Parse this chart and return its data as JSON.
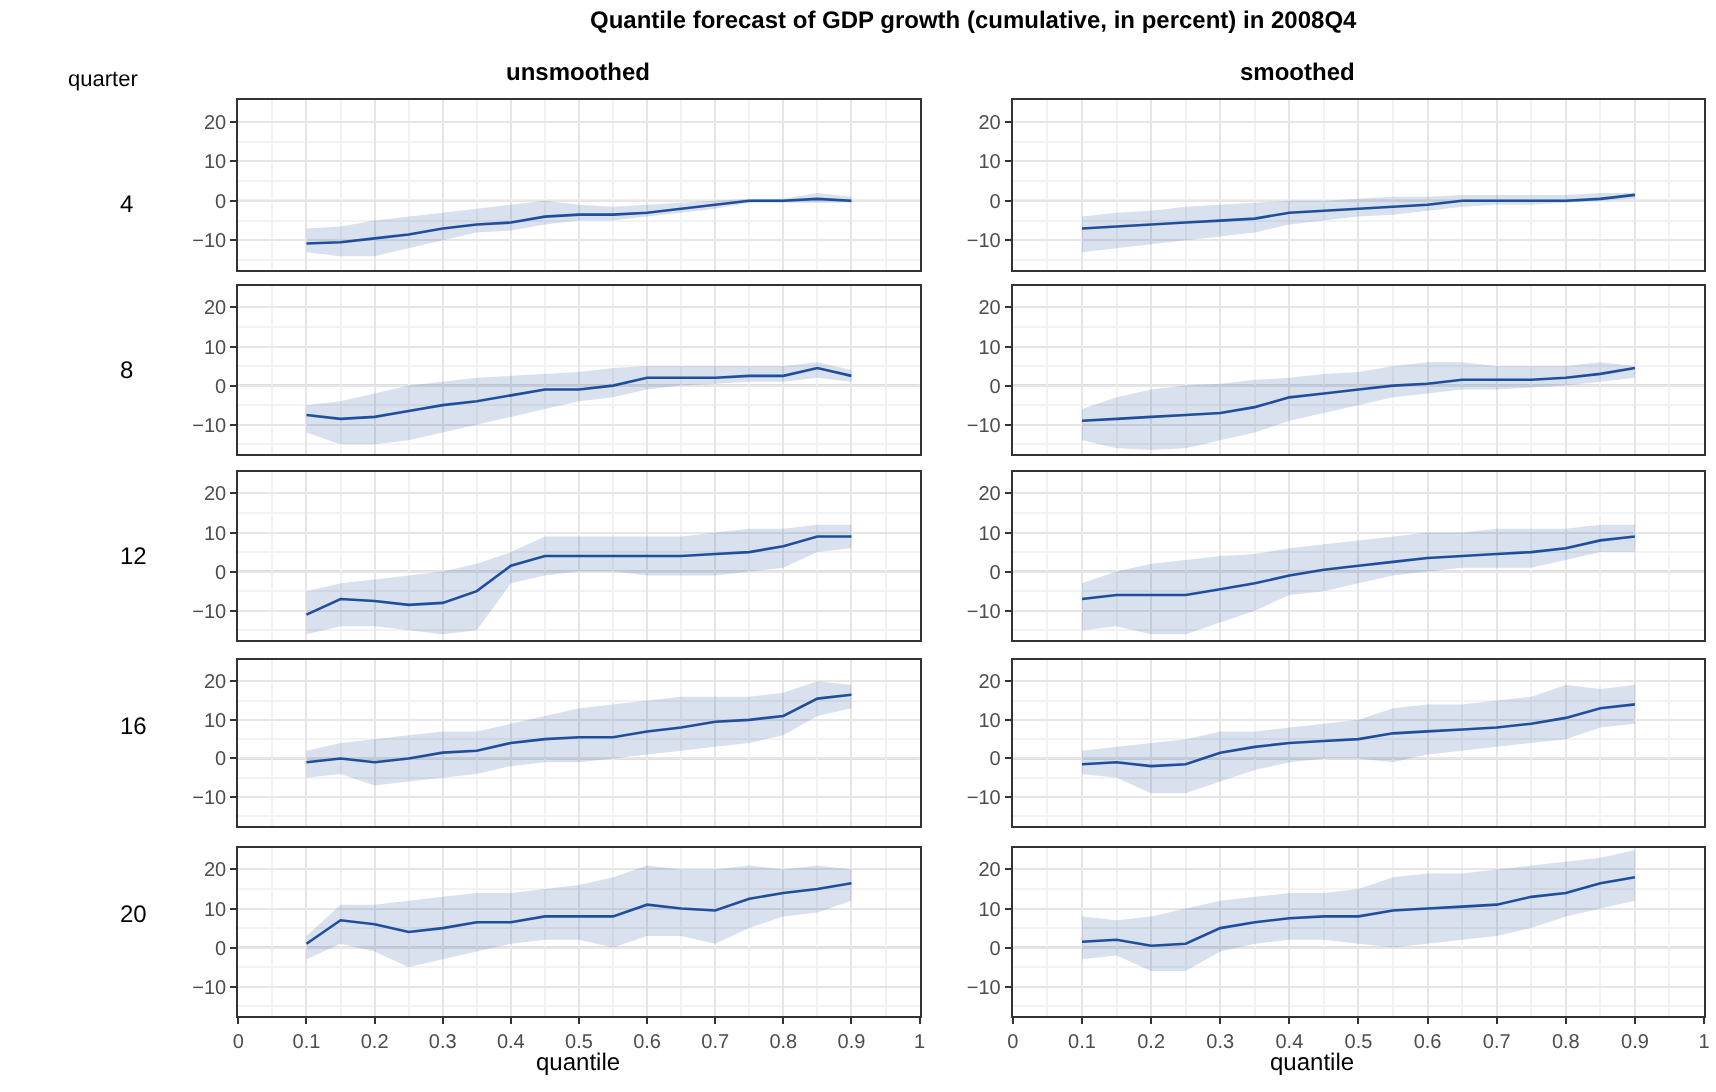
{
  "chart_data": [
    {
      "type": "line",
      "title": "Quantile forecast of GDP growth (cumulative, in percent) in 2008Q4",
      "subtitle": "unsmoothed",
      "ylabel": "4",
      "annotations": [
        "quarter"
      ],
      "x": [
        0.1,
        0.15,
        0.2,
        0.25,
        0.3,
        0.35,
        0.4,
        0.45,
        0.5,
        0.55,
        0.6,
        0.65,
        0.7,
        0.75,
        0.8,
        0.85,
        0.9
      ],
      "series": [
        {
          "color": "#1f4e9c",
          "values": [
            -10.8,
            -10.5,
            -9.5,
            -8.5,
            -7,
            -6,
            -5.5,
            -4,
            -3.5,
            -3.5,
            -3,
            -2,
            -1,
            0,
            0,
            0.5,
            0
          ],
          "lower": [
            -13,
            -14,
            -14,
            -12,
            -10,
            -8,
            -7.5,
            -6,
            -5,
            -5,
            -4,
            -3,
            -2,
            -0.5,
            -0.5,
            -0.5,
            -0.5
          ],
          "upper": [
            -7,
            -6.5,
            -5,
            -4,
            -3,
            -2,
            -1,
            0,
            -1,
            -1.5,
            -1,
            -0.5,
            0,
            0.5,
            0.5,
            2,
            1
          ]
        }
      ],
      "xlim": [
        0,
        1
      ],
      "xticks": [
        0,
        0.1,
        0.2,
        0.3,
        0.4,
        0.5,
        0.6,
        0.7,
        0.8,
        0.9,
        1
      ],
      "ylim": [
        -17.5,
        25.5
      ],
      "yticks": [
        -10,
        0,
        10,
        20
      ],
      "grid": true,
      "tick_labels": "y",
      "ref_lines": [
        {
          "axis": "y",
          "value": 0,
          "color": "#bdbdbd"
        }
      ]
    },
    {
      "type": "line",
      "subtitle": "smoothed",
      "x": [
        0.1,
        0.15,
        0.2,
        0.25,
        0.3,
        0.35,
        0.4,
        0.45,
        0.5,
        0.55,
        0.6,
        0.65,
        0.7,
        0.75,
        0.8,
        0.85,
        0.9
      ],
      "series": [
        {
          "color": "#1f4e9c",
          "values": [
            -7,
            -6.5,
            -6,
            -5.5,
            -5,
            -4.5,
            -3,
            -2.5,
            -2,
            -1.5,
            -1,
            0,
            0,
            0,
            0,
            0.5,
            1.5
          ],
          "lower": [
            -13,
            -12,
            -11,
            -10,
            -9,
            -8,
            -6,
            -5,
            -4,
            -3.5,
            -2.5,
            -1.5,
            -1,
            -1,
            -0.5,
            0,
            0.5
          ],
          "upper": [
            -4,
            -3,
            -2.5,
            -1.5,
            -1,
            -0.5,
            0,
            0,
            0.5,
            1,
            1,
            1.5,
            1.5,
            1.5,
            1.5,
            2,
            2
          ]
        }
      ],
      "xlim": [
        0,
        1
      ],
      "xticks": [
        0,
        0.1,
        0.2,
        0.3,
        0.4,
        0.5,
        0.6,
        0.7,
        0.8,
        0.9,
        1
      ],
      "ylim": [
        -17.5,
        25.5
      ],
      "yticks": [
        -10,
        0,
        10,
        20
      ],
      "grid": true,
      "tick_labels": "y",
      "ref_lines": [
        {
          "axis": "y",
          "value": 0,
          "color": "#bdbdbd"
        }
      ]
    },
    {
      "type": "line",
      "ylabel": "8",
      "x": [
        0.1,
        0.15,
        0.2,
        0.25,
        0.3,
        0.35,
        0.4,
        0.45,
        0.5,
        0.55,
        0.6,
        0.65,
        0.7,
        0.75,
        0.8,
        0.85,
        0.9
      ],
      "series": [
        {
          "color": "#1f4e9c",
          "values": [
            -7.5,
            -8.5,
            -8,
            -6.5,
            -5,
            -4,
            -2.5,
            -1,
            -1,
            0,
            2,
            2,
            2,
            2.5,
            2.5,
            4.5,
            2.5
          ],
          "lower": [
            -12,
            -15,
            -15,
            -14,
            -12,
            -10,
            -8,
            -6,
            -4,
            -3,
            -1,
            0,
            0.5,
            1,
            1,
            2,
            1
          ],
          "upper": [
            -5,
            -4,
            -2,
            0,
            1,
            2,
            2.5,
            3,
            3.5,
            4.5,
            5,
            5,
            5,
            5,
            5,
            6,
            4
          ]
        }
      ],
      "xlim": [
        0,
        1
      ],
      "xticks": [
        0,
        0.1,
        0.2,
        0.3,
        0.4,
        0.5,
        0.6,
        0.7,
        0.8,
        0.9,
        1
      ],
      "ylim": [
        -17.5,
        25.5
      ],
      "yticks": [
        -10,
        0,
        10,
        20
      ],
      "grid": true,
      "tick_labels": "y",
      "ref_lines": [
        {
          "axis": "y",
          "value": 0,
          "color": "#bdbdbd"
        }
      ]
    },
    {
      "type": "line",
      "x": [
        0.1,
        0.15,
        0.2,
        0.25,
        0.3,
        0.35,
        0.4,
        0.45,
        0.5,
        0.55,
        0.6,
        0.65,
        0.7,
        0.75,
        0.8,
        0.85,
        0.9
      ],
      "series": [
        {
          "color": "#1f4e9c",
          "values": [
            -9,
            -8.5,
            -8,
            -7.5,
            -7,
            -5.5,
            -3,
            -2,
            -1,
            0,
            0.5,
            1.5,
            1.5,
            1.5,
            2,
            3,
            4.5
          ],
          "lower": [
            -14,
            -16,
            -16.5,
            -16,
            -14,
            -12,
            -9,
            -7,
            -5,
            -3,
            -2,
            -1,
            -1,
            -0.5,
            0,
            1,
            2
          ],
          "upper": [
            -6,
            -3,
            -1,
            0,
            0.5,
            1.5,
            2,
            3,
            3.5,
            5,
            6,
            6,
            5,
            5,
            5,
            6,
            5
          ]
        }
      ],
      "xlim": [
        0,
        1
      ],
      "xticks": [
        0,
        0.1,
        0.2,
        0.3,
        0.4,
        0.5,
        0.6,
        0.7,
        0.8,
        0.9,
        1
      ],
      "ylim": [
        -17.5,
        25.5
      ],
      "yticks": [
        -10,
        0,
        10,
        20
      ],
      "grid": true,
      "tick_labels": "y",
      "ref_lines": [
        {
          "axis": "y",
          "value": 0,
          "color": "#bdbdbd"
        }
      ]
    },
    {
      "type": "line",
      "ylabel": "12",
      "x": [
        0.1,
        0.15,
        0.2,
        0.25,
        0.3,
        0.35,
        0.4,
        0.45,
        0.5,
        0.55,
        0.6,
        0.65,
        0.7,
        0.75,
        0.8,
        0.85,
        0.9
      ],
      "series": [
        {
          "color": "#1f4e9c",
          "values": [
            -11,
            -7,
            -7.5,
            -8.5,
            -8,
            -5,
            1.5,
            4,
            4,
            4,
            4,
            4,
            4.5,
            5,
            6.5,
            9,
            9
          ],
          "lower": [
            -16,
            -14,
            -14,
            -15,
            -16,
            -15,
            -3,
            -1,
            0,
            0,
            -1,
            -1,
            -1,
            0,
            1,
            5,
            6
          ],
          "upper": [
            -5,
            -3,
            -2,
            -1,
            0,
            2,
            5,
            9,
            9,
            9,
            9,
            9,
            10,
            11,
            11,
            12,
            12
          ]
        }
      ],
      "xlim": [
        0,
        1
      ],
      "xticks": [
        0,
        0.1,
        0.2,
        0.3,
        0.4,
        0.5,
        0.6,
        0.7,
        0.8,
        0.9,
        1
      ],
      "ylim": [
        -17.5,
        25.5
      ],
      "yticks": [
        -10,
        0,
        10,
        20
      ],
      "grid": true,
      "tick_labels": "y",
      "ref_lines": [
        {
          "axis": "y",
          "value": 0,
          "color": "#bdbdbd"
        }
      ]
    },
    {
      "type": "line",
      "x": [
        0.1,
        0.15,
        0.2,
        0.25,
        0.3,
        0.35,
        0.4,
        0.45,
        0.5,
        0.55,
        0.6,
        0.65,
        0.7,
        0.75,
        0.8,
        0.85,
        0.9
      ],
      "series": [
        {
          "color": "#1f4e9c",
          "values": [
            -7,
            -6,
            -6,
            -6,
            -4.5,
            -3,
            -1,
            0.5,
            1.5,
            2.5,
            3.5,
            4,
            4.5,
            5,
            6,
            8,
            9
          ],
          "lower": [
            -15,
            -14,
            -16,
            -16,
            -13,
            -10,
            -6,
            -5,
            -3,
            -1,
            0,
            1,
            1,
            1,
            3,
            5,
            5
          ],
          "upper": [
            -3,
            0,
            2,
            3,
            4,
            4.5,
            6,
            7,
            8,
            9,
            10,
            10,
            11,
            11,
            11,
            12,
            12
          ]
        }
      ],
      "xlim": [
        0,
        1
      ],
      "xticks": [
        0,
        0.1,
        0.2,
        0.3,
        0.4,
        0.5,
        0.6,
        0.7,
        0.8,
        0.9,
        1
      ],
      "ylim": [
        -17.5,
        25.5
      ],
      "yticks": [
        -10,
        0,
        10,
        20
      ],
      "grid": true,
      "tick_labels": "y",
      "ref_lines": [
        {
          "axis": "y",
          "value": 0,
          "color": "#bdbdbd"
        }
      ]
    },
    {
      "type": "line",
      "ylabel": "16",
      "x": [
        0.1,
        0.15,
        0.2,
        0.25,
        0.3,
        0.35,
        0.4,
        0.45,
        0.5,
        0.55,
        0.6,
        0.65,
        0.7,
        0.75,
        0.8,
        0.85,
        0.9
      ],
      "series": [
        {
          "color": "#1f4e9c",
          "values": [
            -1,
            0,
            -1,
            0,
            1.5,
            2,
            4,
            5,
            5.5,
            5.5,
            7,
            8,
            9.5,
            10,
            11,
            15.5,
            16.5
          ],
          "lower": [
            -5,
            -4,
            -7,
            -6,
            -5,
            -4,
            -2,
            -1,
            -1,
            0,
            1,
            2,
            3,
            4,
            6,
            11,
            13
          ],
          "upper": [
            2,
            4,
            5,
            6,
            7,
            7,
            9,
            11,
            13,
            14,
            15,
            16,
            16,
            16,
            17,
            20,
            19
          ]
        }
      ],
      "xlim": [
        0,
        1
      ],
      "xticks": [
        0,
        0.1,
        0.2,
        0.3,
        0.4,
        0.5,
        0.6,
        0.7,
        0.8,
        0.9,
        1
      ],
      "ylim": [
        -17.5,
        25.5
      ],
      "yticks": [
        -10,
        0,
        10,
        20
      ],
      "grid": true,
      "tick_labels": "y",
      "ref_lines": [
        {
          "axis": "y",
          "value": 0,
          "color": "#bdbdbd"
        }
      ]
    },
    {
      "type": "line",
      "x": [
        0.1,
        0.15,
        0.2,
        0.25,
        0.3,
        0.35,
        0.4,
        0.45,
        0.5,
        0.55,
        0.6,
        0.65,
        0.7,
        0.75,
        0.8,
        0.85,
        0.9
      ],
      "series": [
        {
          "color": "#1f4e9c",
          "values": [
            -1.5,
            -1,
            -2,
            -1.5,
            1.5,
            3,
            4,
            4.5,
            5,
            6.5,
            7,
            7.5,
            8,
            9,
            10.5,
            13,
            14
          ],
          "lower": [
            -4,
            -5,
            -9,
            -9,
            -6,
            -3,
            -1,
            0,
            0,
            -1,
            1,
            2,
            3,
            4,
            5,
            8,
            9
          ],
          "upper": [
            2,
            3,
            4,
            5,
            7,
            7,
            8,
            9,
            10,
            13,
            14,
            14,
            15,
            16,
            19,
            18,
            19
          ]
        }
      ],
      "xlim": [
        0,
        1
      ],
      "xticks": [
        0,
        0.1,
        0.2,
        0.3,
        0.4,
        0.5,
        0.6,
        0.7,
        0.8,
        0.9,
        1
      ],
      "ylim": [
        -17.5,
        25.5
      ],
      "yticks": [
        -10,
        0,
        10,
        20
      ],
      "grid": true,
      "tick_labels": "y",
      "ref_lines": [
        {
          "axis": "y",
          "value": 0,
          "color": "#bdbdbd"
        }
      ]
    },
    {
      "type": "line",
      "ylabel": "20",
      "xlabel": "quantile",
      "x": [
        0.1,
        0.15,
        0.2,
        0.25,
        0.3,
        0.35,
        0.4,
        0.45,
        0.5,
        0.55,
        0.6,
        0.65,
        0.7,
        0.75,
        0.8,
        0.85,
        0.9
      ],
      "series": [
        {
          "color": "#1f4e9c",
          "values": [
            1,
            7,
            6,
            4,
            5,
            6.5,
            6.5,
            8,
            8,
            8,
            11,
            10,
            9.5,
            12.5,
            14,
            15,
            16.5
          ],
          "lower": [
            -3,
            1,
            -1,
            -5,
            -3,
            -1,
            1,
            2,
            2,
            0,
            3,
            3,
            1,
            5,
            8,
            9,
            12
          ],
          "upper": [
            3,
            11,
            11,
            12,
            13,
            14,
            14,
            15,
            16,
            18,
            21,
            20,
            20,
            21,
            20,
            21,
            20
          ]
        }
      ],
      "xlim": [
        0,
        1
      ],
      "xticks": [
        0,
        0.1,
        0.2,
        0.3,
        0.4,
        0.5,
        0.6,
        0.7,
        0.8,
        0.9,
        1
      ],
      "ylim": [
        -17.5,
        25.5
      ],
      "yticks": [
        -10,
        0,
        10,
        20
      ],
      "grid": true,
      "ref_lines": [
        {
          "axis": "y",
          "value": 0,
          "color": "#bdbdbd"
        }
      ]
    },
    {
      "type": "line",
      "xlabel": "quantile",
      "x": [
        0.1,
        0.15,
        0.2,
        0.25,
        0.3,
        0.35,
        0.4,
        0.45,
        0.5,
        0.55,
        0.6,
        0.65,
        0.7,
        0.75,
        0.8,
        0.85,
        0.9
      ],
      "series": [
        {
          "color": "#1f4e9c",
          "values": [
            1.5,
            2,
            0.5,
            1,
            5,
            6.5,
            7.5,
            8,
            8,
            9.5,
            10,
            10.5,
            11,
            13,
            14,
            16.5,
            18
          ],
          "lower": [
            -3,
            -2,
            -6,
            -6,
            -1,
            1,
            2,
            2,
            1,
            0,
            1,
            2,
            3,
            5,
            8,
            10,
            12
          ],
          "upper": [
            8,
            7,
            8,
            10,
            12,
            13,
            14,
            14,
            15,
            18,
            19,
            19,
            20,
            21,
            22,
            23,
            25
          ]
        }
      ],
      "xlim": [
        0,
        1
      ],
      "xticks": [
        0,
        0.1,
        0.2,
        0.3,
        0.4,
        0.5,
        0.6,
        0.7,
        0.8,
        0.9,
        1
      ],
      "ylim": [
        -17.5,
        25.5
      ],
      "yticks": [
        -10,
        0,
        10,
        20
      ],
      "grid": true,
      "ref_lines": [
        {
          "axis": "y",
          "value": 0,
          "color": "#bdbdbd"
        }
      ]
    }
  ]
}
